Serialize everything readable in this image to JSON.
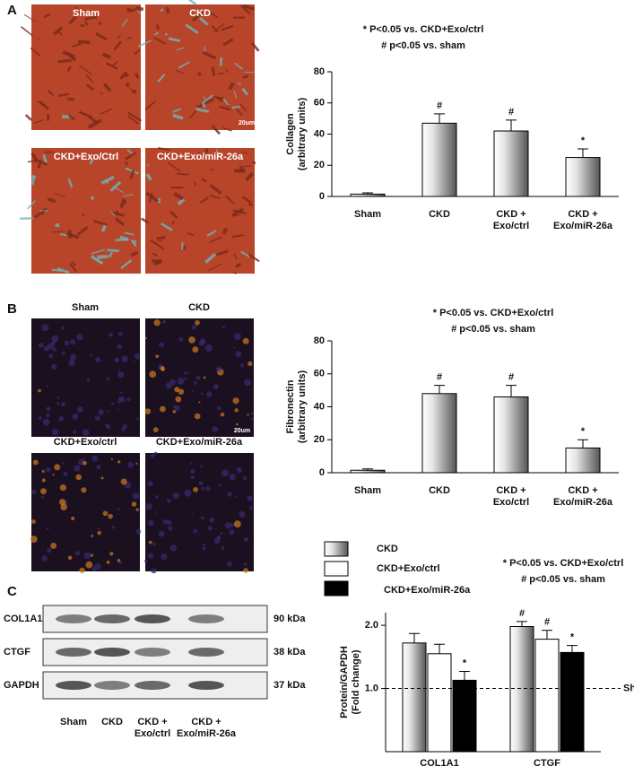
{
  "panels": [
    "A",
    "B",
    "C"
  ],
  "images": {
    "A": [
      "Sham",
      "CKD",
      "CKD+Exo/Ctrl",
      "CKD+Exo/miR-26a"
    ],
    "A_scale": "20um",
    "B": [
      "Sham",
      "CKD",
      "CKD+Exo/ctrl",
      "CKD+Exo/miR-26a"
    ],
    "B_scale": "20um"
  },
  "blot": {
    "rows": [
      {
        "protein": "COL1A1",
        "size": "90 kDa"
      },
      {
        "protein": "CTGF",
        "size": "38 kDa"
      },
      {
        "protein": "GAPDH",
        "size": "37 kDa"
      }
    ],
    "lanes": [
      "Sham",
      "CKD",
      "CKD + Exo/ctrl",
      "CKD + Exo/miR-26a"
    ]
  },
  "chart_data": [
    {
      "type": "bar",
      "notes": [
        "* P<0.05 vs. CKD+Exo/ctrl",
        "# p<0.05 vs. sham"
      ],
      "ylabel": [
        "Collagen",
        "(arbitrary units)"
      ],
      "categories": [
        "Sham",
        "CKD",
        "CKD + Exo/ctrl",
        "CKD + Exo/miR-26a"
      ],
      "values": [
        1.5,
        47,
        42,
        25
      ],
      "errors": [
        0.8,
        6,
        7,
        5.5
      ],
      "annotations": [
        null,
        "#",
        "#",
        "*"
      ],
      "color": "#8c8c8c",
      "ylim": [
        0,
        80
      ],
      "yticks": [
        0,
        20,
        40,
        60,
        80
      ]
    },
    {
      "type": "bar",
      "notes": [
        "* P<0.05 vs. CKD+Exo/ctrl",
        "# p<0.05 vs. sham"
      ],
      "ylabel": [
        "Fibronectin",
        "(arbitrary units)"
      ],
      "categories": [
        "Sham",
        "CKD",
        "CKD + Exo/ctrl",
        "CKD + Exo/miR-26a"
      ],
      "values": [
        1.5,
        48,
        46,
        15
      ],
      "errors": [
        0.8,
        5,
        7,
        5
      ],
      "annotations": [
        null,
        "#",
        "#",
        "*"
      ],
      "color": "#8c8c8c",
      "ylim": [
        0,
        80
      ],
      "yticks": [
        0,
        20,
        40,
        60,
        80
      ]
    },
    {
      "type": "grouped_bar",
      "notes": [
        "* P<0.05 vs. CKD+Exo/ctrl",
        "# p<0.05 vs. sham"
      ],
      "ylabel": [
        "Protein/GAPDH",
        "(Fold change)"
      ],
      "categories": [
        "COL1A1",
        "CTGF"
      ],
      "series": [
        {
          "name": "CKD",
          "color": "#8c8c8c",
          "values": [
            1.72,
            1.98
          ],
          "errors": [
            0.15,
            0.08
          ],
          "annotations": [
            null,
            "#"
          ]
        },
        {
          "name": "CKD+Exo/ctrl",
          "color": "#ffffff",
          "values": [
            1.55,
            1.78
          ],
          "errors": [
            0.15,
            0.14
          ],
          "annotations": [
            null,
            "#"
          ]
        },
        {
          "name": "CKD+Exo/miR-26a",
          "color": "#000000",
          "values": [
            1.13,
            1.57
          ],
          "errors": [
            0.14,
            0.11
          ],
          "annotations": [
            "*",
            "*"
          ]
        }
      ],
      "reference": {
        "value": 1.0,
        "label": "Sham"
      },
      "ylim": [
        0,
        2.2
      ],
      "yticks": [
        {
          "value": 1,
          "label": "1.0"
        },
        {
          "value": 2,
          "label": "2.0"
        }
      ]
    }
  ]
}
